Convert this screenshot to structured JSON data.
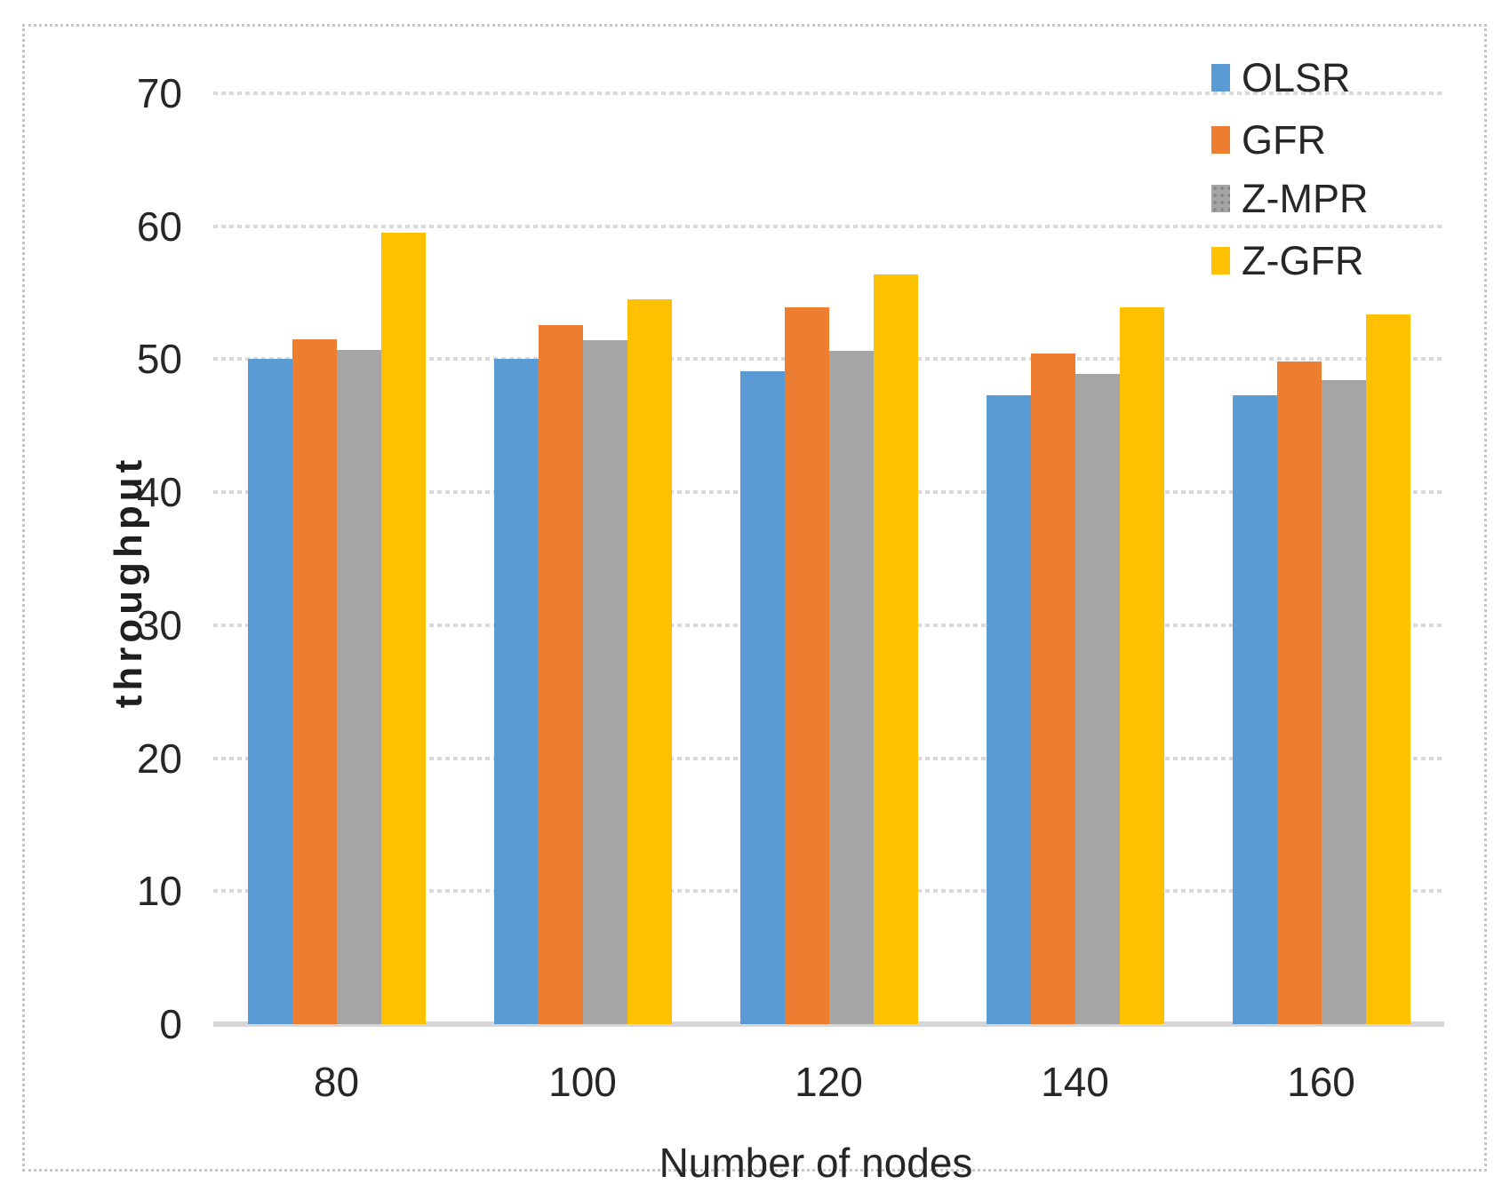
{
  "chart_data": {
    "type": "bar",
    "title": "",
    "xlabel": "Number of nodes",
    "ylabel": "throughput",
    "categories": [
      "80",
      "100",
      "120",
      "140",
      "160"
    ],
    "series": [
      {
        "name": "OLSR",
        "color": "#5B9BD5",
        "pattern": "solid",
        "values": [
          50.0,
          50.0,
          49.1,
          47.3,
          47.3
        ]
      },
      {
        "name": "GFR",
        "color": "#ED7D31",
        "pattern": "solid",
        "values": [
          51.5,
          52.6,
          53.9,
          50.4,
          49.8
        ]
      },
      {
        "name": "Z-MPR",
        "color": "#A5A5A5",
        "pattern": "dots",
        "values": [
          50.7,
          51.4,
          50.6,
          48.9,
          48.4
        ]
      },
      {
        "name": "Z-GFR",
        "color": "#FFC000",
        "pattern": "solid",
        "values": [
          59.5,
          54.5,
          56.4,
          53.9,
          53.4
        ]
      }
    ],
    "ylim": [
      0,
      70
    ],
    "yticks": [
      0,
      10,
      20,
      30,
      40,
      50,
      60,
      70
    ],
    "grid": "horizontal-dotted",
    "legend_position": "top-right",
    "colors": {
      "gridline": "#d9d9d9",
      "axis_line": "#d6d6d6",
      "frame_border": "#c6c6c6",
      "text": "#262626"
    }
  }
}
